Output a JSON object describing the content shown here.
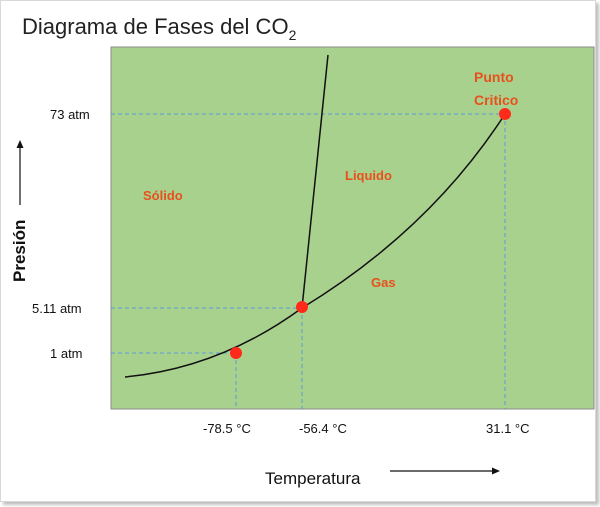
{
  "header": {
    "title": "Diagrama de Fases del CO",
    "title_subscript": "2"
  },
  "axes": {
    "x_title": "Temperatura",
    "y_title": "Presión",
    "arrow_icon": "long-arrow"
  },
  "chart_data": {
    "type": "phase-diagram",
    "title": "Diagrama de Fases del CO2",
    "xlabel": "Temperatura",
    "ylabel": "Presión",
    "x_ticks": [
      "-78.5 °C",
      "-56.4 °C",
      "31.1 °C"
    ],
    "y_ticks": [
      "1 atm",
      "5.11 atm",
      "73 atm"
    ],
    "regions": [
      "Sólido",
      "Liquido",
      "Gas"
    ],
    "critical_label_line1": "Punto",
    "critical_label_line2": "Critico",
    "points": [
      {
        "temperature_c": -78.5,
        "pressure_atm": 1
      },
      {
        "temperature_c": -56.4,
        "pressure_atm": 5.11
      },
      {
        "temperature_c": 31.1,
        "pressure_atm": 73
      }
    ],
    "colors": {
      "plot_background": "#a9d18e",
      "plot_border": "#8a8a8a",
      "guide_lines": "#5b9bd5",
      "curves": "#111111",
      "markers": "#ff2a1a",
      "labels": "#e8501c"
    }
  }
}
